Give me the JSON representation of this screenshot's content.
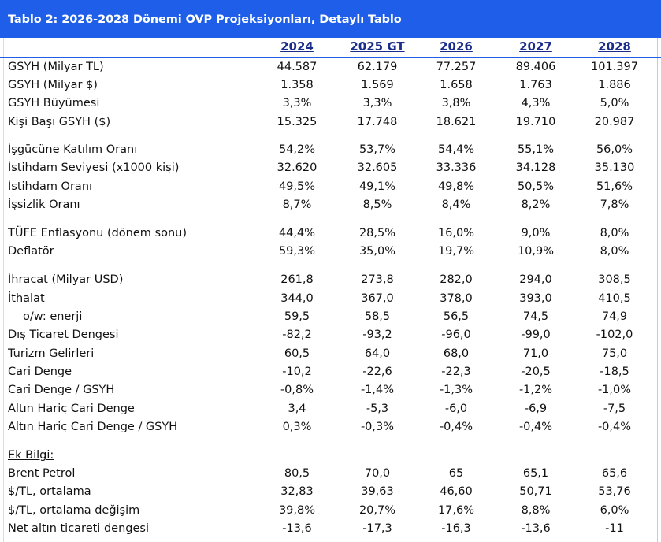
{
  "title": "Tablo 2: 2026-2028 Dönemi OVP Projeksiyonları, Detaylı Tablo",
  "columns": [
    "2024",
    "2025 GT",
    "2026",
    "2027",
    "2028"
  ],
  "rows": [
    {
      "label": "GSYH (Milyar TL)",
      "values": [
        "44.587",
        "62.179",
        "77.257",
        "89.406",
        "101.397"
      ]
    },
    {
      "label": "GSYH (Milyar $)",
      "values": [
        "1.358",
        "1.569",
        "1.658",
        "1.763",
        "1.886"
      ]
    },
    {
      "label": "GSYH Büyümesi",
      "values": [
        "3,3%",
        "3,3%",
        "3,8%",
        "4,3%",
        "5,0%"
      ]
    },
    {
      "label": "Kişi Başı GSYH ($)",
      "values": [
        "15.325",
        "17.748",
        "18.621",
        "19.710",
        "20.987"
      ]
    },
    {
      "label": "İşgücüne Katılım Oranı",
      "values": [
        "54,2%",
        "53,7%",
        "54,4%",
        "55,1%",
        "56,0%"
      ]
    },
    {
      "label": "İstihdam Seviyesi (x1000 kişi)",
      "values": [
        "32.620",
        "32.605",
        "33.336",
        "34.128",
        "35.130"
      ]
    },
    {
      "label": "İstihdam Oranı",
      "values": [
        "49,5%",
        "49,1%",
        "49,8%",
        "50,5%",
        "51,6%"
      ]
    },
    {
      "label": "İşsizlik Oranı",
      "values": [
        "8,7%",
        "8,5%",
        "8,4%",
        "8,2%",
        "7,8%"
      ]
    },
    {
      "label": "TÜFE Enflasyonu (dönem sonu)",
      "values": [
        "44,4%",
        "28,5%",
        "16,0%",
        "9,0%",
        "8,0%"
      ]
    },
    {
      "label": "Deflatör",
      "values": [
        "59,3%",
        "35,0%",
        "19,7%",
        "10,9%",
        "8,0%"
      ]
    },
    {
      "label": "İhracat (Milyar USD)",
      "values": [
        "261,8",
        "273,8",
        "282,0",
        "294,0",
        "308,5"
      ]
    },
    {
      "label": "İthalat",
      "values": [
        "344,0",
        "367,0",
        "378,0",
        "393,0",
        "410,5"
      ]
    },
    {
      "label": "o/w: enerji",
      "values": [
        "59,5",
        "58,5",
        "56,5",
        "74,5",
        "74,9"
      ]
    },
    {
      "label": "Dış Ticaret Dengesi",
      "values": [
        "-82,2",
        "-93,2",
        "-96,0",
        "-99,0",
        "-102,0"
      ]
    },
    {
      "label": "Turizm Gelirleri",
      "values": [
        "60,5",
        "64,0",
        "68,0",
        "71,0",
        "75,0"
      ]
    },
    {
      "label": "Cari Denge",
      "values": [
        "-10,2",
        "-22,6",
        "-22,3",
        "-20,5",
        "-18,5"
      ]
    },
    {
      "label": "Cari Denge / GSYH",
      "values": [
        "-0,8%",
        "-1,4%",
        "-1,3%",
        "-1,2%",
        "-1,0%"
      ]
    },
    {
      "label": "Altın Hariç Cari Denge",
      "values": [
        "3,4",
        "-5,3",
        "-6,0",
        "-6,9",
        "-7,5"
      ]
    },
    {
      "label": "Altın Hariç Cari Denge / GSYH",
      "values": [
        "0,3%",
        "-0,3%",
        "-0,4%",
        "-0,4%",
        "-0,4%"
      ]
    },
    {
      "label": "Ek Bilgi:",
      "values": [
        "",
        "",
        "",
        "",
        ""
      ]
    },
    {
      "label": "Brent Petrol",
      "values": [
        "80,5",
        "70,0",
        "65",
        "65,1",
        "65,6"
      ]
    },
    {
      "label": "$/TL, ortalama",
      "values": [
        "32,83",
        "39,63",
        "46,60",
        "50,71",
        "53,76"
      ]
    },
    {
      "label": "$/TL, ortalama değişim",
      "values": [
        "39,8%",
        "20,7%",
        "17,6%",
        "8,8%",
        "6,0%"
      ]
    },
    {
      "label": "Net altın ticareti dengesi",
      "values": [
        "-13,6",
        "-17,3",
        "-16,3",
        "-13,6",
        "-11"
      ]
    }
  ],
  "colors": {
    "title_bg": "#1f5ee8",
    "title_text": "#ffffff",
    "header_text": "#1a2d8a"
  }
}
